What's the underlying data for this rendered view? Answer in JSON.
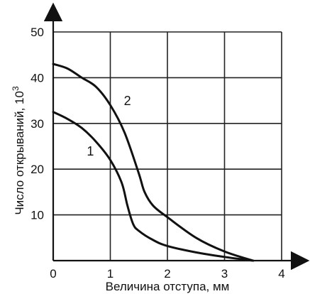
{
  "chart_data": {
    "type": "line",
    "xlabel": "Величина отступа, мм",
    "ylabel": "Число открываний, 10",
    "ylabel_exponent": "3",
    "xlim": [
      0,
      4
    ],
    "ylim": [
      0,
      50
    ],
    "x_ticks": [
      "0",
      "1",
      "2",
      "3",
      "4"
    ],
    "y_ticks": [
      "10",
      "20",
      "30",
      "40",
      "50"
    ],
    "grid": true,
    "series": [
      {
        "name": "1",
        "x": [
          0,
          0.25,
          0.5,
          0.75,
          1.0,
          1.2,
          1.3,
          1.4,
          1.5,
          1.75,
          2.0,
          2.5,
          3.0,
          3.5
        ],
        "y": [
          32.5,
          31,
          29,
          26,
          22,
          17,
          12,
          8,
          6.5,
          4.5,
          3.2,
          1.8,
          0.8,
          0
        ]
      },
      {
        "name": "2",
        "x": [
          0,
          0.25,
          0.5,
          0.75,
          1.0,
          1.25,
          1.5,
          1.6,
          1.75,
          2.0,
          2.5,
          3.0,
          3.5
        ],
        "y": [
          43,
          42,
          40,
          38,
          34,
          28,
          19,
          15,
          12,
          9.5,
          5,
          2,
          0
        ]
      }
    ],
    "curve_labels": [
      {
        "text": "1",
        "x": 0.65,
        "y": 23
      },
      {
        "text": "2",
        "x": 1.3,
        "y": 34
      }
    ]
  }
}
